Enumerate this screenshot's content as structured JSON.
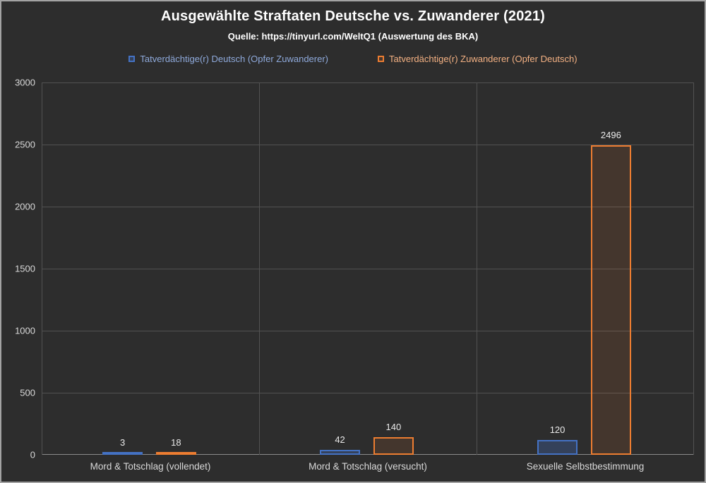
{
  "header": {
    "title": "Ausgewählte Straftaten Deutsche vs. Zuwanderer (2021)",
    "subtitle": "Quelle: https://tinyurl.com/WeltQ1 (Auswertung des BKA)"
  },
  "legend": [
    {
      "label": "Tatverdächtige(r) Deutsch (Opfer Zuwanderer)",
      "color": "#4472C4",
      "fill": "rgba(68,114,196,0.30)",
      "text_color": "#8FAADC"
    },
    {
      "label": "Tatverdächtige(r) Zuwanderer (Opfer Deutsch)",
      "color": "#ED7D31",
      "fill": "rgba(237,125,49,0.12)",
      "text_color": "#F4B183"
    }
  ],
  "chart_data": {
    "type": "bar",
    "categories": [
      "Mord & Totschlag (vollendet)",
      "Mord & Totschlag (versucht)",
      "Sexuelle Selbstbestimmung"
    ],
    "series": [
      {
        "name": "Tatverdächtige(r) Deutsch (Opfer Zuwanderer)",
        "color": "#4472C4",
        "fill": "rgba(68,114,196,0.30)",
        "values": [
          3,
          42,
          120
        ]
      },
      {
        "name": "Tatverdächtige(r) Zuwanderer (Opfer Deutsch)",
        "color": "#ED7D31",
        "fill": "rgba(237,125,49,0.12)",
        "values": [
          18,
          140,
          2496
        ]
      }
    ],
    "ylim": [
      0,
      3000
    ],
    "yticks": [
      0,
      500,
      1000,
      1500,
      2000,
      2500,
      3000
    ],
    "grid": true,
    "legend_position": "top",
    "background": "#2d2d2d"
  }
}
